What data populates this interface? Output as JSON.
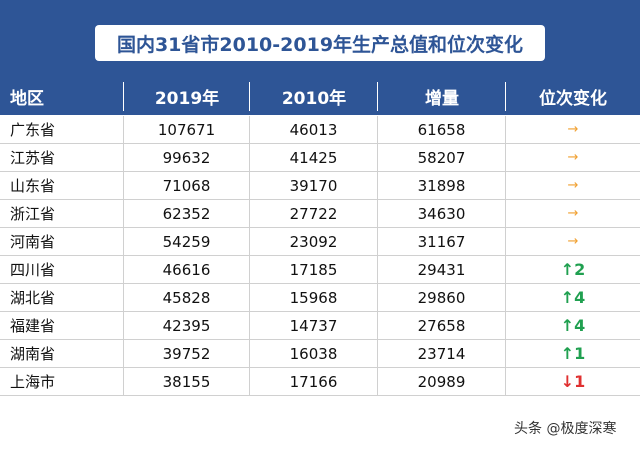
{
  "title": "国内31省市2010-2019年生产总值和位次变化",
  "columns": [
    "地区",
    "2019年",
    "2010年",
    "增量",
    "位次变化"
  ],
  "rows": [
    {
      "region": "广东省",
      "y2019": "107671",
      "y2010": "46013",
      "increase": "61658",
      "change": "→",
      "trend": "same"
    },
    {
      "region": "江苏省",
      "y2019": "99632",
      "y2010": "41425",
      "increase": "58207",
      "change": "→",
      "trend": "same"
    },
    {
      "region": "山东省",
      "y2019": "71068",
      "y2010": "39170",
      "increase": "31898",
      "change": "→",
      "trend": "same"
    },
    {
      "region": "浙江省",
      "y2019": "62352",
      "y2010": "27722",
      "increase": "34630",
      "change": "→",
      "trend": "same"
    },
    {
      "region": "河南省",
      "y2019": "54259",
      "y2010": "23092",
      "increase": "31167",
      "change": "→",
      "trend": "same"
    },
    {
      "region": "四川省",
      "y2019": "46616",
      "y2010": "17185",
      "increase": "29431",
      "change": "↑2",
      "trend": "up"
    },
    {
      "region": "湖北省",
      "y2019": "45828",
      "y2010": "15968",
      "increase": "29860",
      "change": "↑4",
      "trend": "up"
    },
    {
      "region": "福建省",
      "y2019": "42395",
      "y2010": "14737",
      "increase": "27658",
      "change": "↑4",
      "trend": "up"
    },
    {
      "region": "湖南省",
      "y2019": "39752",
      "y2010": "16038",
      "increase": "23714",
      "change": "↑1",
      "trend": "up"
    },
    {
      "region": "上海市",
      "y2019": "38155",
      "y2010": "17166",
      "increase": "20989",
      "change": "↓1",
      "trend": "down"
    }
  ],
  "watermark": "头条 @极度深寒",
  "colors": {
    "header": "#2e5596",
    "up": "#20a050",
    "down": "#e03030",
    "same": "#f0a030"
  }
}
